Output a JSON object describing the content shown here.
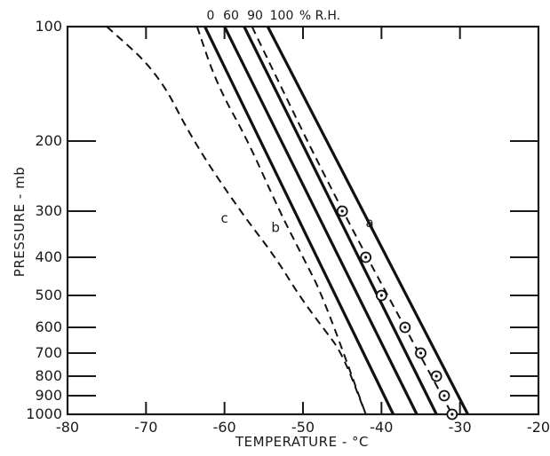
{
  "chart_data": {
    "type": "line",
    "title": "",
    "xlabel": "TEMPERATURE - °C",
    "ylabel": "PRESSURE - mb",
    "xlim": [
      -80,
      -20
    ],
    "ylim": [
      1000,
      100
    ],
    "y_scale": "pressure (log-type)",
    "x_ticks": [
      -80,
      -70,
      -60,
      -50,
      -40,
      -30,
      -20
    ],
    "y_ticks": [
      100,
      200,
      300,
      400,
      500,
      600,
      700,
      800,
      900,
      1000
    ],
    "rh_header": [
      "0",
      "60",
      "90",
      "100",
      "% R.H."
    ],
    "series": [
      {
        "name": "0",
        "style": "solid",
        "points": [
          [
            -62.5,
            100
          ],
          [
            -38.5,
            1000
          ]
        ]
      },
      {
        "name": "60",
        "style": "solid",
        "points": [
          [
            -60,
            100
          ],
          [
            -35.5,
            1000
          ]
        ]
      },
      {
        "name": "90",
        "style": "solid",
        "points": [
          [
            -57.5,
            100
          ],
          [
            -33,
            1000
          ]
        ]
      },
      {
        "name": "100",
        "style": "solid",
        "points": [
          [
            -54.5,
            100
          ],
          [
            -29,
            1000
          ]
        ]
      },
      {
        "name": "a",
        "style": "dashed",
        "points": [
          [
            -56.5,
            100
          ],
          [
            -46,
            280
          ],
          [
            -31,
            1000
          ]
        ]
      },
      {
        "name": "b",
        "style": "dashed",
        "points": [
          [
            -63.5,
            100
          ],
          [
            -61,
            150
          ],
          [
            -57,
            200
          ],
          [
            -53,
            300
          ],
          [
            -50,
            400
          ],
          [
            -47.5,
            500
          ],
          [
            -42,
            1000
          ]
        ]
      },
      {
        "name": "c",
        "style": "dashed",
        "points": [
          [
            -75,
            100
          ],
          [
            -68.5,
            140
          ],
          [
            -64,
            200
          ],
          [
            -58,
            300
          ],
          [
            -53.5,
            400
          ],
          [
            -50.5,
            500
          ],
          [
            -47.5,
            600
          ],
          [
            -45,
            700
          ],
          [
            -42,
            1000
          ]
        ]
      }
    ],
    "markers": {
      "name": "observations",
      "points": [
        [
          -45,
          300
        ],
        [
          -42,
          400
        ],
        [
          -40,
          500
        ],
        [
          -37,
          600
        ],
        [
          -35,
          700
        ],
        [
          -33,
          800
        ],
        [
          -32,
          900
        ],
        [
          -31,
          1000
        ]
      ]
    },
    "annotations": [
      {
        "text": "a",
        "series": "a",
        "at": [
          -41.5,
          335
        ]
      },
      {
        "text": "b",
        "series": "b",
        "at": [
          -53.5,
          345
        ]
      },
      {
        "text": "c",
        "series": "c",
        "at": [
          -60,
          325
        ]
      }
    ],
    "grid": false,
    "legend": "none"
  }
}
